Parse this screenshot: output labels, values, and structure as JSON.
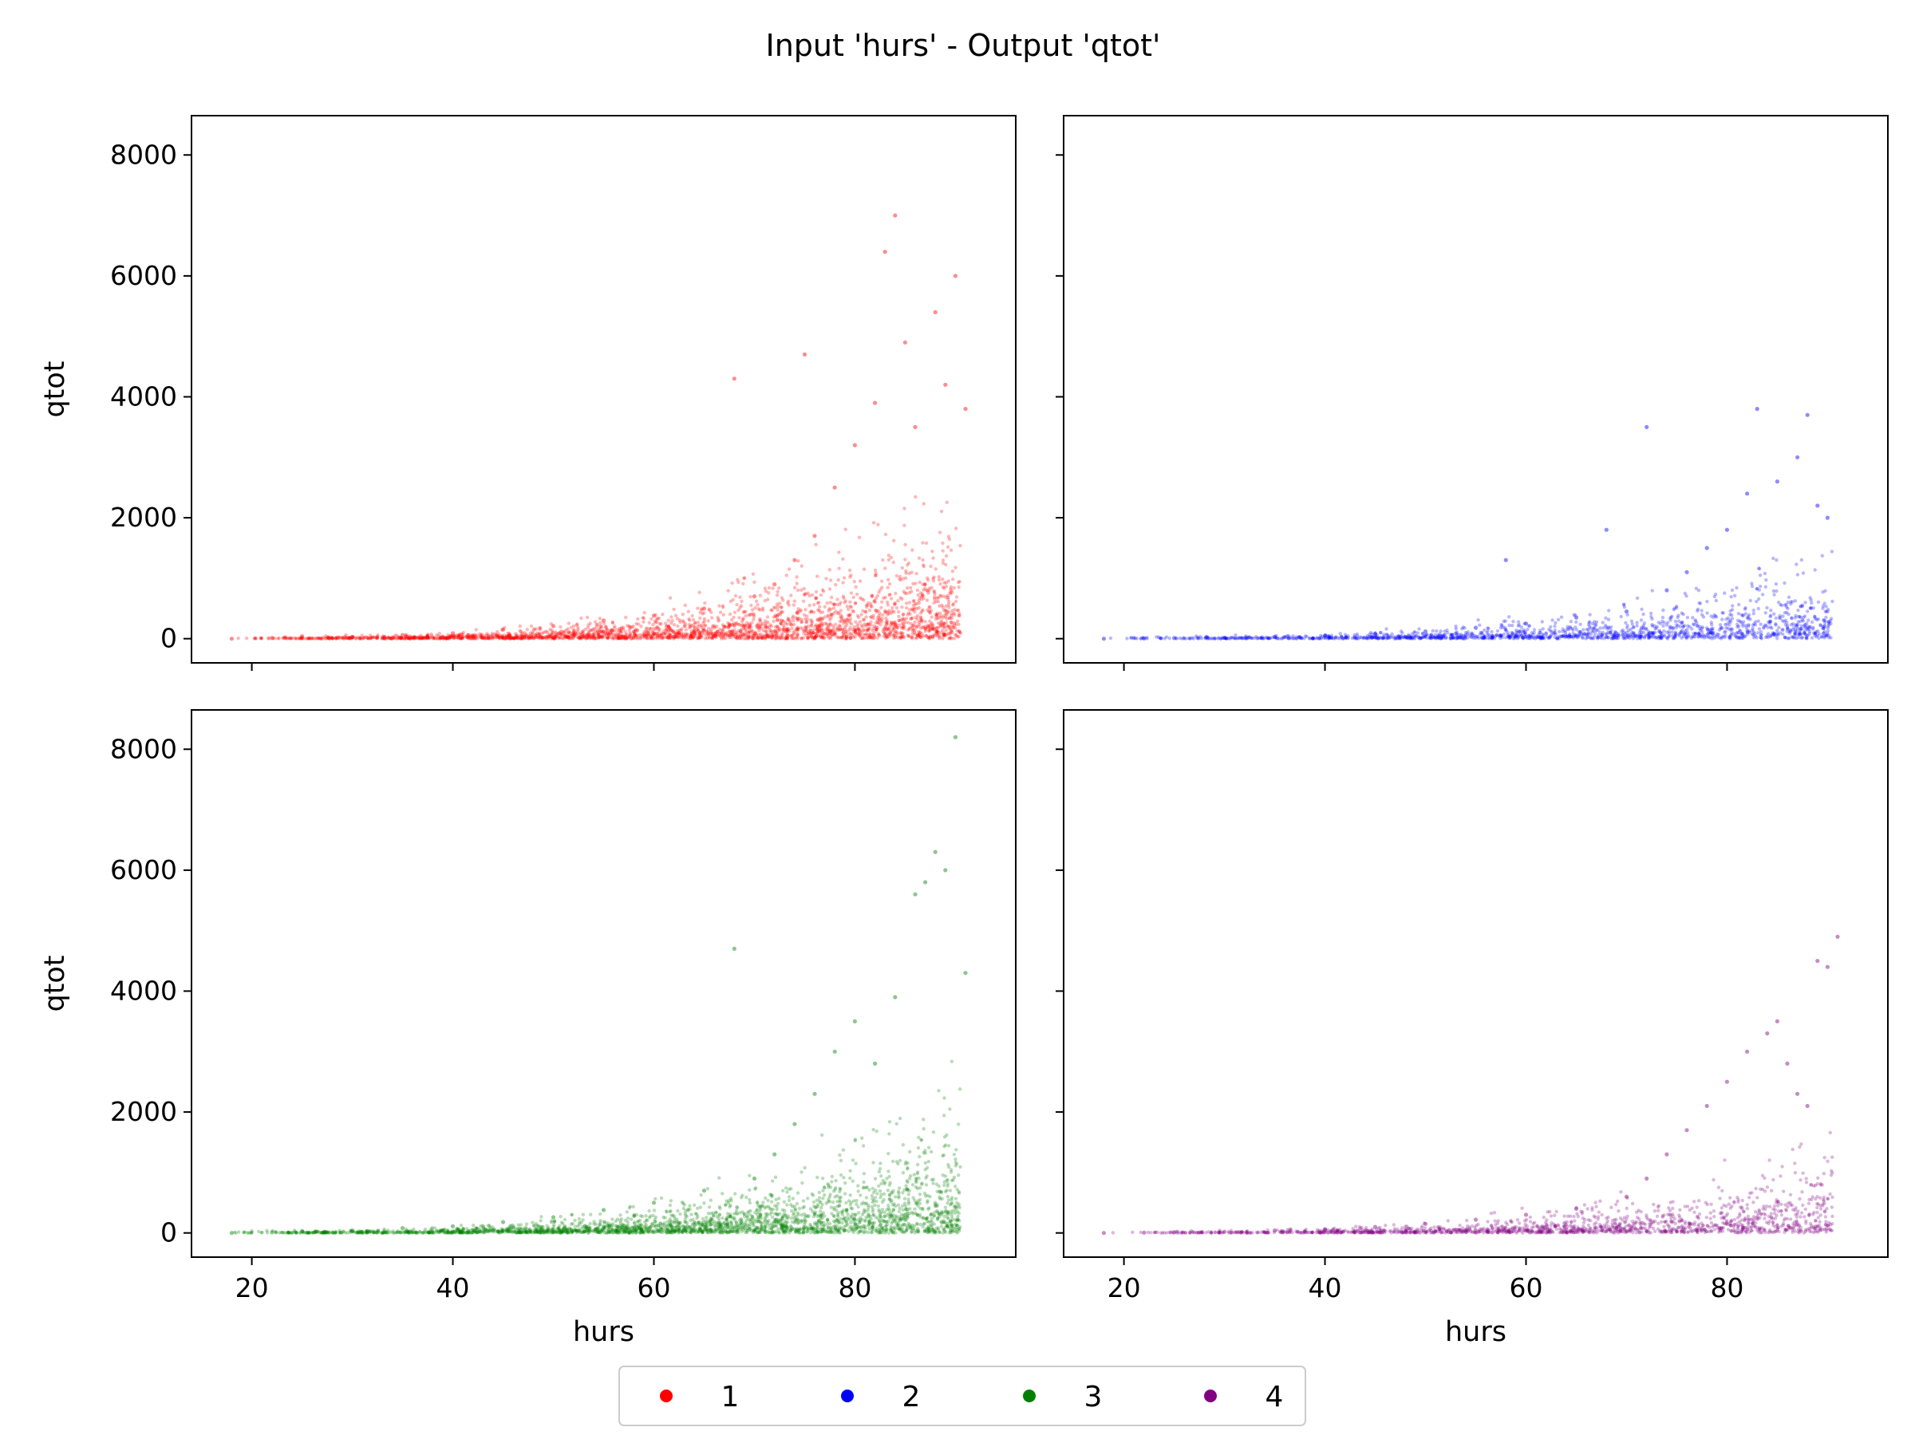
{
  "figure": {
    "title": "Input 'hurs' - Output 'qtot'"
  },
  "chart_data": {
    "type": "scatter",
    "title": "Input 'hurs' - Output 'qtot'",
    "xlabel": "hurs",
    "ylabel": "qtot",
    "xlim": [
      14,
      96
    ],
    "ylim": [
      -400,
      8650
    ],
    "x_ticks": [
      20,
      40,
      60,
      80
    ],
    "y_ticks": [
      0,
      2000,
      4000,
      6000,
      8000
    ],
    "shared_axes": true,
    "grid": false,
    "legend": {
      "placement": "bottom-center",
      "columns": 4
    },
    "panels": [
      {
        "series": "1",
        "color": "#ff0000",
        "show_ylabel": true,
        "show_xlabel": false,
        "points": [
          [
            18,
            0
          ],
          [
            22,
            10
          ],
          [
            25,
            40
          ],
          [
            30,
            30
          ],
          [
            35,
            60
          ],
          [
            40,
            90
          ],
          [
            45,
            150
          ],
          [
            50,
            210
          ],
          [
            55,
            300
          ],
          [
            60,
            380
          ],
          [
            65,
            500
          ],
          [
            68,
            4300
          ],
          [
            70,
            700
          ],
          [
            72,
            900
          ],
          [
            74,
            1300
          ],
          [
            75,
            4700
          ],
          [
            76,
            1700
          ],
          [
            78,
            2500
          ],
          [
            80,
            3200
          ],
          [
            82,
            3900
          ],
          [
            83,
            6400
          ],
          [
            84,
            7000
          ],
          [
            85,
            4900
          ],
          [
            86,
            3500
          ],
          [
            88,
            5400
          ],
          [
            89,
            4200
          ],
          [
            90,
            6000
          ],
          [
            91,
            3800
          ]
        ]
      },
      {
        "series": "2",
        "color": "#0000ff",
        "show_ylabel": false,
        "show_xlabel": false,
        "points": [
          [
            18,
            0
          ],
          [
            22,
            5
          ],
          [
            25,
            10
          ],
          [
            30,
            15
          ],
          [
            35,
            30
          ],
          [
            40,
            50
          ],
          [
            45,
            80
          ],
          [
            50,
            120
          ],
          [
            55,
            180
          ],
          [
            58,
            1300
          ],
          [
            60,
            250
          ],
          [
            65,
            350
          ],
          [
            68,
            1800
          ],
          [
            70,
            450
          ],
          [
            72,
            3500
          ],
          [
            74,
            800
          ],
          [
            76,
            1100
          ],
          [
            78,
            1500
          ],
          [
            80,
            1800
          ],
          [
            82,
            2400
          ],
          [
            83,
            3800
          ],
          [
            85,
            2600
          ],
          [
            87,
            3000
          ],
          [
            88,
            3700
          ],
          [
            89,
            2200
          ],
          [
            90,
            2000
          ]
        ]
      },
      {
        "series": "3",
        "color": "#008000",
        "show_ylabel": true,
        "show_xlabel": true,
        "points": [
          [
            18,
            0
          ],
          [
            22,
            10
          ],
          [
            25,
            30
          ],
          [
            30,
            40
          ],
          [
            35,
            80
          ],
          [
            40,
            110
          ],
          [
            45,
            180
          ],
          [
            50,
            260
          ],
          [
            55,
            380
          ],
          [
            60,
            500
          ],
          [
            65,
            700
          ],
          [
            68,
            4700
          ],
          [
            70,
            900
          ],
          [
            72,
            1300
          ],
          [
            74,
            1800
          ],
          [
            76,
            2300
          ],
          [
            78,
            3000
          ],
          [
            80,
            3500
          ],
          [
            82,
            2800
          ],
          [
            84,
            3900
          ],
          [
            86,
            5600
          ],
          [
            87,
            5800
          ],
          [
            88,
            6300
          ],
          [
            89,
            6000
          ],
          [
            90,
            8200
          ],
          [
            91,
            4300
          ]
        ]
      },
      {
        "series": "4",
        "color": "#800080",
        "show_ylabel": false,
        "show_xlabel": true,
        "points": [
          [
            18,
            0
          ],
          [
            22,
            5
          ],
          [
            25,
            10
          ],
          [
            30,
            20
          ],
          [
            35,
            40
          ],
          [
            40,
            60
          ],
          [
            45,
            100
          ],
          [
            50,
            150
          ],
          [
            55,
            220
          ],
          [
            60,
            300
          ],
          [
            65,
            400
          ],
          [
            70,
            600
          ],
          [
            72,
            900
          ],
          [
            74,
            1300
          ],
          [
            76,
            1700
          ],
          [
            78,
            2100
          ],
          [
            80,
            2500
          ],
          [
            82,
            3000
          ],
          [
            84,
            3300
          ],
          [
            85,
            3500
          ],
          [
            86,
            2800
          ],
          [
            87,
            2300
          ],
          [
            88,
            2100
          ],
          [
            89,
            4500
          ],
          [
            90,
            4400
          ],
          [
            91,
            4900
          ]
        ]
      }
    ],
    "legend_entries": [
      {
        "label": "1",
        "color": "#ff0000"
      },
      {
        "label": "2",
        "color": "#0000ff"
      },
      {
        "label": "3",
        "color": "#008000"
      },
      {
        "label": "4",
        "color": "#800080"
      }
    ]
  }
}
